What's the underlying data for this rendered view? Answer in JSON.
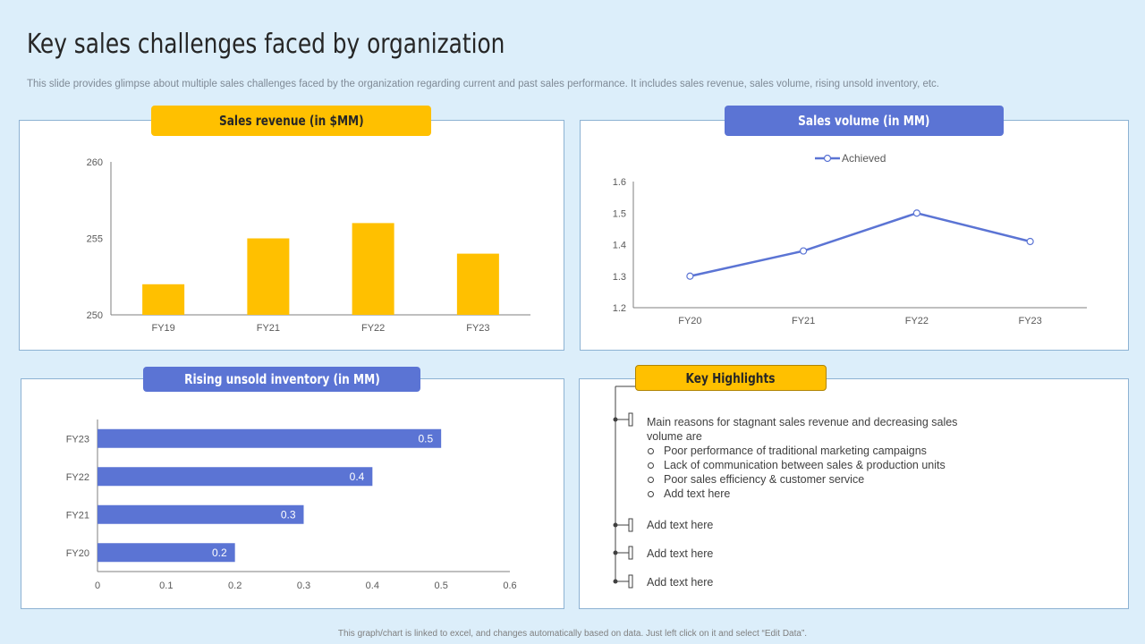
{
  "page": {
    "title": "Key sales challenges faced by organization",
    "subtitle": "This slide provides glimpse about multiple sales challenges faced by the organization regarding current and past sales performance. It includes sales revenue, sales volume, rising unsold inventory, etc.",
    "footer": "This graph/chart is linked to excel, and changes automatically based on data. Just left click on it and select “Edit Data”."
  },
  "colors": {
    "yellow": "#ffc000",
    "blue": "#5b74d4",
    "background": "#dceefa"
  },
  "chart_data": [
    {
      "type": "bar",
      "title": "Sales revenue (in $MM)",
      "categories": [
        "FY19",
        "FY21",
        "FY22",
        "FY23"
      ],
      "values": [
        252,
        255,
        256,
        254
      ],
      "ylim": [
        250,
        260
      ],
      "yticks": [
        "250",
        "255",
        "260"
      ],
      "xlabel": "",
      "ylabel": "",
      "grid": false
    },
    {
      "type": "line",
      "title": "Sales volume (in MM)",
      "categories": [
        "FY20",
        "FY21",
        "FY22",
        "FY23"
      ],
      "series": [
        {
          "name": "Achieved",
          "values": [
            1.3,
            1.38,
            1.5,
            1.41
          ]
        }
      ],
      "ylim": [
        1.2,
        1.6
      ],
      "yticks": [
        "1.2",
        "1.3",
        "1.4",
        "1.5",
        "1.6"
      ],
      "legend": "top-center",
      "grid": false
    },
    {
      "type": "bar",
      "orientation": "horizontal",
      "title": "Rising unsold inventory (in MM)",
      "categories": [
        "FY20",
        "FY21",
        "FY22",
        "FY23"
      ],
      "values": [
        0.2,
        0.3,
        0.4,
        0.5
      ],
      "labels": [
        "0.2",
        "0.3",
        "0.4",
        "0.5"
      ],
      "xlim": [
        0,
        0.6
      ],
      "xticks": [
        "0",
        "0.1",
        "0.2",
        "0.3",
        "0.4",
        "0.5",
        "0.6"
      ],
      "grid": false
    }
  ],
  "highlights": {
    "title": "Key Highlights",
    "main_line1": "Main reasons for stagnant sales revenue  and decreasing sales",
    "main_line2": "volume  are",
    "subs": [
      "Poor performance  of traditional  marketing campaigns",
      "Lack of communication between  sales & production  units",
      "Poor sales efficiency & customer service",
      "Add text here"
    ],
    "extra": [
      "Add text here",
      "Add text here",
      "Add text here"
    ]
  }
}
